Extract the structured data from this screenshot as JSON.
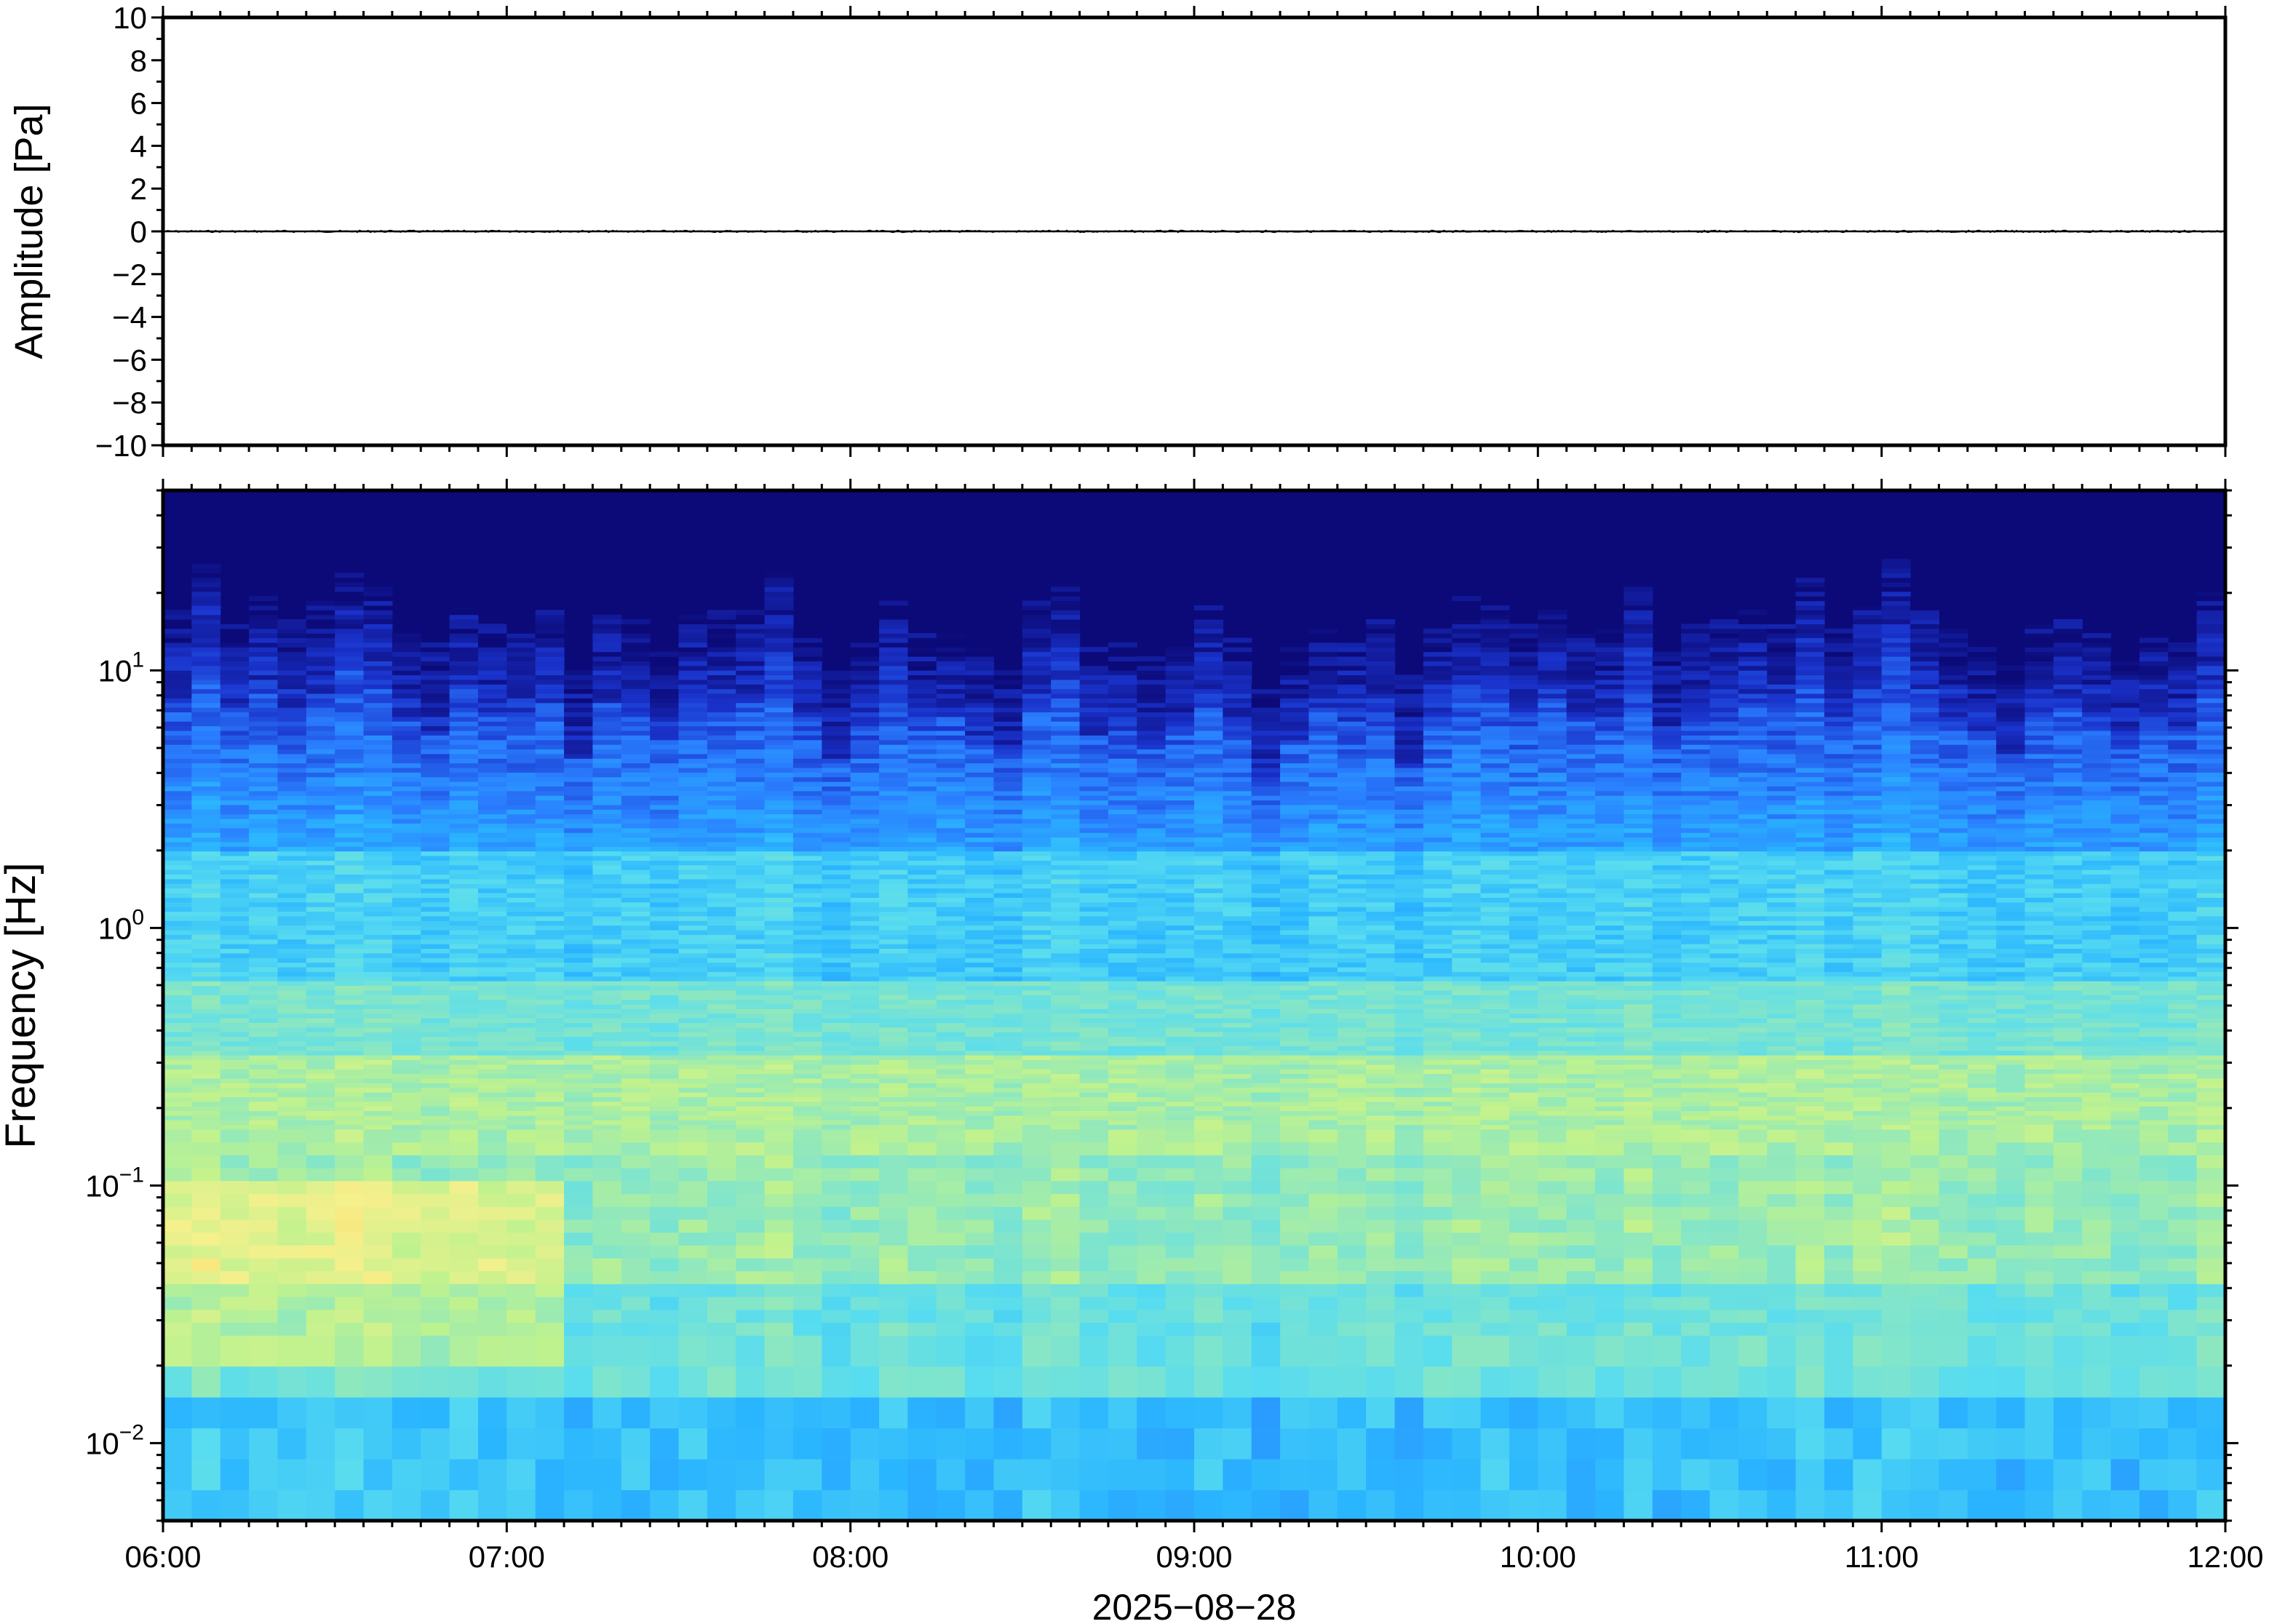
{
  "chart_data": [
    {
      "type": "line",
      "ylabel": "Amplitude [Pa]",
      "ylim": [
        -10,
        10
      ],
      "yticks": [
        "10",
        "8",
        "6",
        "4",
        "2",
        "0",
        "−2",
        "−4",
        "−6",
        "−8",
        "−10"
      ],
      "x": [
        "06:00",
        "12:00"
      ],
      "values": [
        0,
        0
      ],
      "grid": false
    },
    {
      "type": "heatmap",
      "ylabel": "Frequency [Hz]",
      "yscale": "log",
      "ylim": [
        0.005,
        50
      ],
      "yticks": [
        {
          "base": "10",
          "exp": "1",
          "value": 10
        },
        {
          "base": "10",
          "exp": "0",
          "value": 1
        },
        {
          "base": "10",
          "exp": "−1",
          "value": 0.1
        },
        {
          "base": "10",
          "exp": "−2",
          "value": 0.01
        }
      ],
      "xlabel": "2025−08−28",
      "xticks": [
        "06:00",
        "07:00",
        "08:00",
        "09:00",
        "10:00",
        "11:00",
        "12:00"
      ],
      "xlim": [
        "06:00",
        "12:00"
      ],
      "colormap": [
        "#0c0a78",
        "#1a33cc",
        "#2a7fff",
        "#2ab5ff",
        "#57dcf0",
        "#86e6c6",
        "#bff28e",
        "#f4f08c",
        "#ffd866"
      ],
      "grid": false
    }
  ],
  "colors": {
    "frame": "#000000",
    "background": "#ffffff",
    "trace": "#000000"
  }
}
